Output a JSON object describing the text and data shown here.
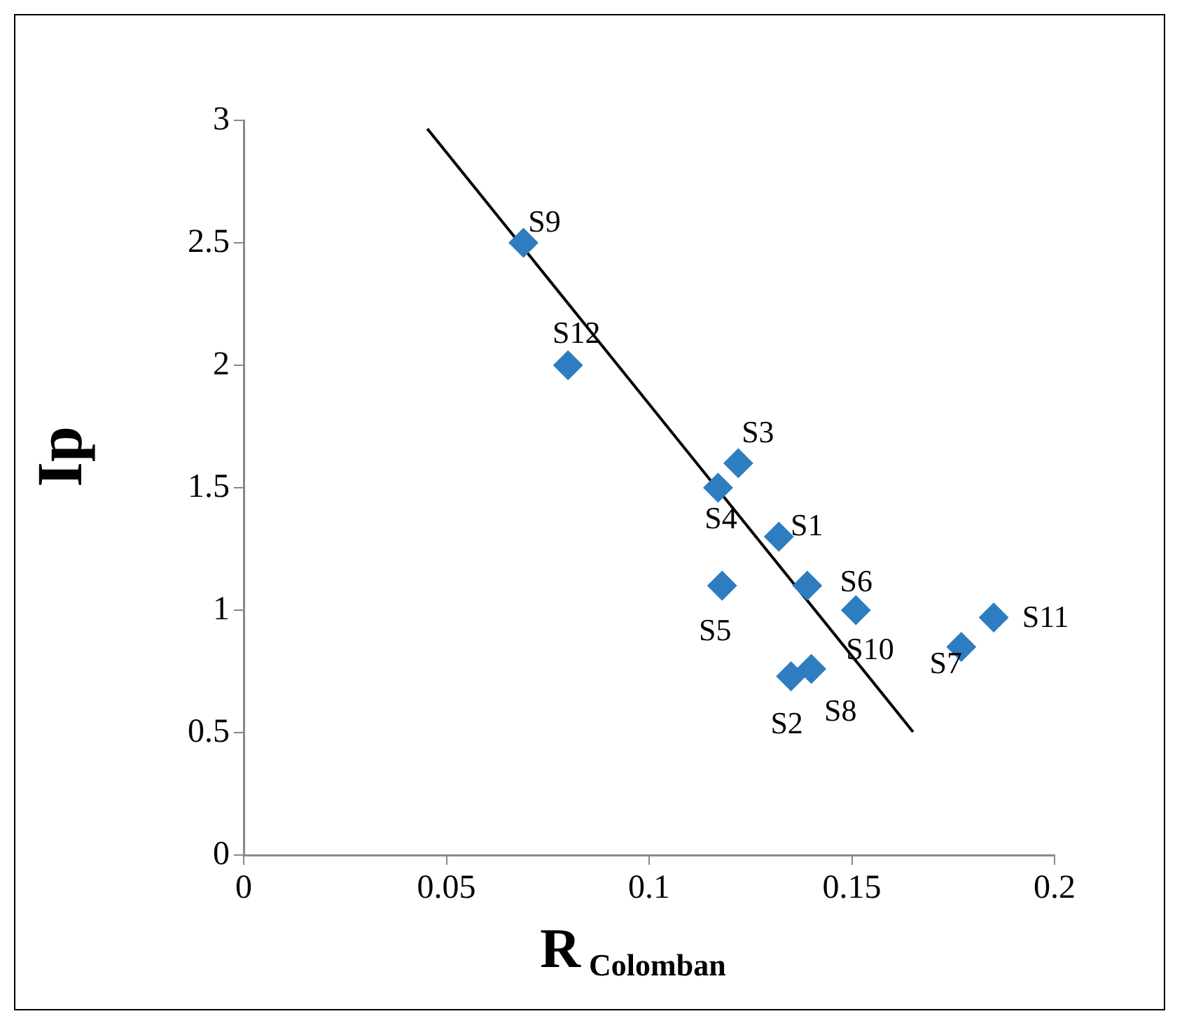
{
  "chart_data": {
    "type": "scatter",
    "xlabel": "R$_{Colomban}$",
    "ylabel": "Ip",
    "xlim": [
      0,
      0.2
    ],
    "xticks": [
      0,
      0.05,
      0.1,
      0.15,
      0.2
    ],
    "ylim": [
      0,
      3
    ],
    "yticks": [
      0,
      0.5,
      1,
      1.5,
      2,
      2.5,
      3
    ],
    "grid": false,
    "legend": false,
    "series": [
      {
        "marker": "diamond",
        "color": "#2e7dc0",
        "x": [
          0.132,
          0.135,
          0.122,
          0.117,
          0.118,
          0.139,
          0.177,
          0.151,
          0.069,
          0.14,
          0.185,
          0.08
        ],
        "values": [
          1.3,
          0.73,
          1.6,
          1.5,
          1.1,
          1.1,
          0.85,
          1.0,
          2.5,
          0.76,
          0.97,
          2.0
        ]
      },
      {
        "type": "line",
        "color": "#000000",
        "x": [
          0.0453,
          0.1651
        ],
        "values": [
          2.966,
          0.503
        ]
      }
    ],
    "annotations": [
      {
        "text": "S1",
        "x": 0.132,
        "y": 1.3
      },
      {
        "text": "S2",
        "x": 0.135,
        "y": 0.73
      },
      {
        "text": "S3",
        "x": 0.122,
        "y": 1.6
      },
      {
        "text": "S4",
        "x": 0.117,
        "y": 1.5
      },
      {
        "text": "S5",
        "x": 0.118,
        "y": 1.1
      },
      {
        "text": "S6",
        "x": 0.139,
        "y": 1.1
      },
      {
        "text": "S7",
        "x": 0.177,
        "y": 0.85
      },
      {
        "text": "S8",
        "x": 0.151,
        "y": 1.0
      },
      {
        "text": "S9",
        "x": 0.069,
        "y": 2.5
      },
      {
        "text": "S10",
        "x": 0.14,
        "y": 0.76
      },
      {
        "text": "S11",
        "x": 0.185,
        "y": 0.97
      },
      {
        "text": "S12",
        "x": 0.08,
        "y": 2.0
      }
    ]
  }
}
